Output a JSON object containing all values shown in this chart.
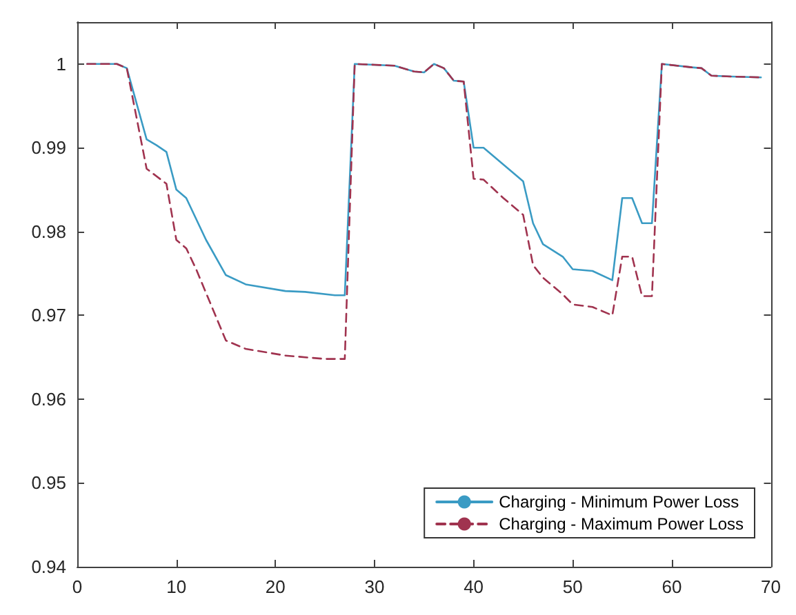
{
  "chart_data": {
    "type": "line",
    "xlim": [
      0,
      70
    ],
    "xticks": [
      0,
      10,
      20,
      30,
      40,
      50,
      60,
      70
    ],
    "ylim": [
      0.94,
      1.005
    ],
    "yticks": [
      0.94,
      0.95,
      0.96,
      0.97,
      0.98,
      0.99,
      1
    ],
    "grid": false,
    "legend": "bottom right",
    "marker": "none",
    "series": [
      {
        "name": "Charging - Minimum Power Loss",
        "color": "#3a9bc4",
        "line_style": "solid",
        "x": [
          1,
          4,
          5,
          7,
          8,
          9,
          10,
          11,
          13,
          15,
          17,
          21,
          23,
          26,
          27,
          28,
          30,
          32,
          34,
          35,
          36,
          37,
          38,
          39,
          40,
          41,
          45,
          46,
          47,
          49,
          50,
          52,
          54,
          55,
          56,
          57,
          58,
          59,
          62,
          63,
          64,
          66,
          69
        ],
        "values": [
          1,
          1,
          0.9995,
          0.991,
          0.9903,
          0.9895,
          0.985,
          0.984,
          0.979,
          0.9748,
          0.9737,
          0.9729,
          0.9728,
          0.9724,
          0.9724,
          1,
          0.9999,
          0.9998,
          0.9991,
          0.999,
          1,
          0.9995,
          0.998,
          0.9979,
          0.99,
          0.99,
          0.986,
          0.981,
          0.9785,
          0.977,
          0.9755,
          0.9753,
          0.9742,
          0.984,
          0.984,
          0.981,
          0.981,
          1,
          0.9996,
          0.9995,
          0.9986,
          0.9985,
          0.9984
        ]
      },
      {
        "name": "Charging - Maximum Power Loss",
        "color": "#a0334f",
        "line_style": "dashed",
        "x": [
          1,
          4,
          5,
          7,
          9,
          10,
          11,
          12,
          15,
          17,
          21,
          25,
          27,
          28,
          30,
          32,
          34,
          35,
          36,
          37,
          38,
          39,
          40,
          41,
          43,
          45,
          46,
          47,
          49,
          50,
          52,
          54,
          55,
          56,
          57,
          58,
          59,
          62,
          63,
          64,
          66,
          69
        ],
        "values": [
          1,
          1,
          0.9995,
          0.9875,
          0.9857,
          0.979,
          0.978,
          0.9755,
          0.967,
          0.966,
          0.9652,
          0.9648,
          0.9648,
          1,
          0.9999,
          0.9998,
          0.9991,
          0.999,
          1,
          0.9995,
          0.998,
          0.9979,
          0.9863,
          0.9862,
          0.984,
          0.982,
          0.976,
          0.9745,
          0.9725,
          0.9713,
          0.971,
          0.97,
          0.977,
          0.977,
          0.9723,
          0.9723,
          1,
          0.9996,
          0.9995,
          0.9986,
          0.9985,
          0.9984
        ]
      }
    ]
  }
}
